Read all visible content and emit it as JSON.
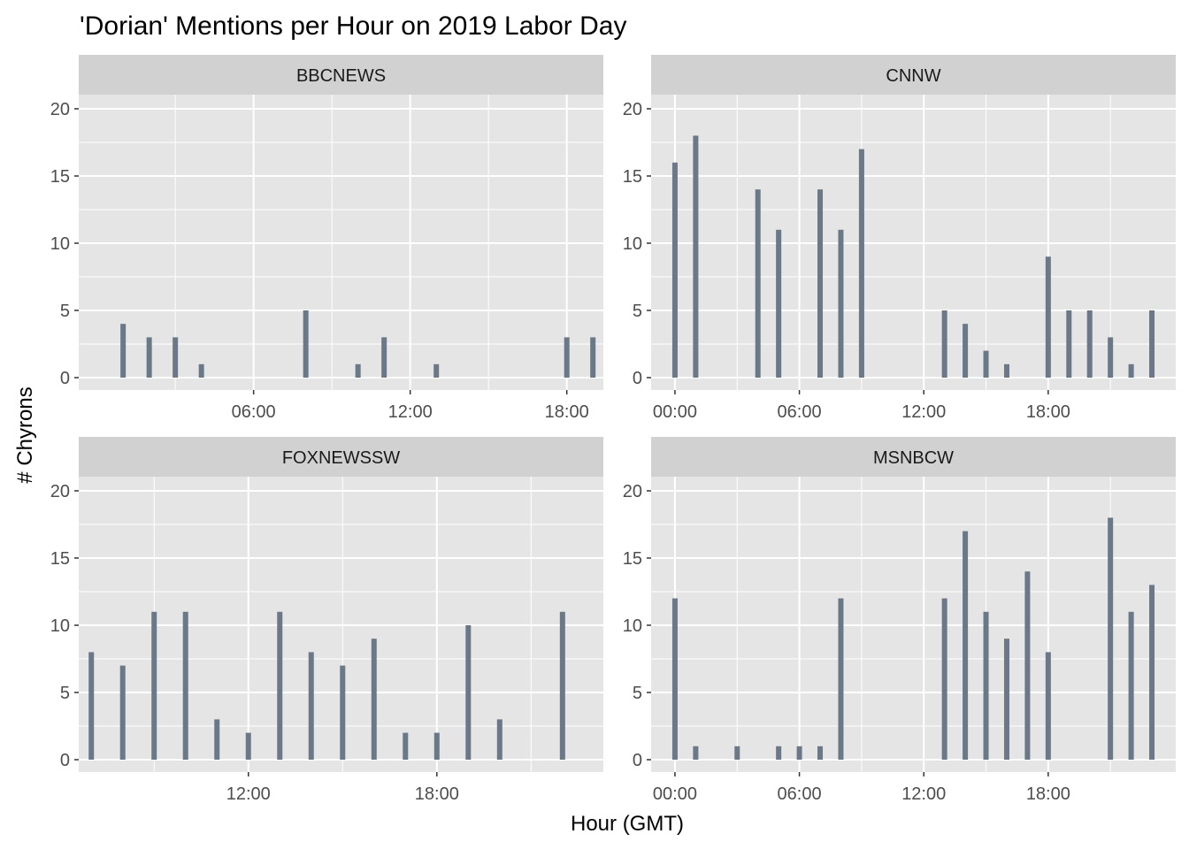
{
  "title": "'Dorian' Mentions per Hour on 2019 Labor Day",
  "xlabel": "Hour (GMT)",
  "ylabel": "# Chyrons",
  "colors": {
    "bar": "#6A7888",
    "panel": "#E5E5E5",
    "strip": "#D1D1D1",
    "grid": "#FFFFFF"
  },
  "chart_data": [
    {
      "type": "bar",
      "panel": "BBCNEWS",
      "x_unit": "hour of day (GMT)",
      "x_range": [
        -0.7,
        19.4
      ],
      "x_ticks": [
        6,
        12,
        18
      ],
      "x_tick_labels": [
        "06:00",
        "12:00",
        "18:00"
      ],
      "ylim": [
        0,
        20
      ],
      "y_ticks": [
        0,
        5,
        10,
        15,
        20
      ],
      "x": [
        1,
        2,
        3,
        4,
        8,
        10,
        11,
        13,
        18,
        19
      ],
      "values": [
        4,
        3,
        3,
        1,
        5,
        1,
        3,
        1,
        3,
        3
      ]
    },
    {
      "type": "bar",
      "panel": "CNNW",
      "x_unit": "hour of day (GMT)",
      "x_range": [
        -1.15,
        24.15
      ],
      "x_ticks": [
        0,
        6,
        12,
        18
      ],
      "x_tick_labels": [
        "00:00",
        "06:00",
        "12:00",
        "18:00"
      ],
      "ylim": [
        0,
        20
      ],
      "y_ticks": [
        0,
        5,
        10,
        15,
        20
      ],
      "x": [
        0,
        1,
        4,
        5,
        7,
        8,
        9,
        13,
        14,
        15,
        16,
        18,
        19,
        20,
        21,
        22,
        23
      ],
      "values": [
        16,
        18,
        14,
        11,
        14,
        11,
        17,
        5,
        4,
        2,
        1,
        9,
        5,
        5,
        3,
        1,
        5
      ]
    },
    {
      "type": "bar",
      "panel": "FOXNEWSSW",
      "x_unit": "hour of day (GMT)",
      "x_range": [
        6.6,
        23.3
      ],
      "x_ticks": [
        12,
        18
      ],
      "x_tick_labels": [
        "12:00",
        "18:00"
      ],
      "ylim": [
        0,
        20
      ],
      "y_ticks": [
        0,
        5,
        10,
        15,
        20
      ],
      "x": [
        7,
        8,
        9,
        10,
        11,
        12,
        13,
        14,
        15,
        16,
        17,
        18,
        19,
        20,
        22,
        23
      ],
      "values": [
        8,
        7,
        11,
        11,
        3,
        2,
        11,
        8,
        7,
        9,
        2,
        2,
        10,
        3,
        11,
        0
      ]
    },
    {
      "type": "bar",
      "panel": "MSNBCW",
      "x_unit": "hour of day (GMT)",
      "x_range": [
        -1.15,
        24.15
      ],
      "x_ticks": [
        0,
        6,
        12,
        18
      ],
      "x_tick_labels": [
        "00:00",
        "06:00",
        "12:00",
        "18:00"
      ],
      "ylim": [
        0,
        20
      ],
      "y_ticks": [
        0,
        5,
        10,
        15,
        20
      ],
      "x": [
        0,
        1,
        3,
        5,
        6,
        7,
        8,
        13,
        14,
        15,
        16,
        17,
        18,
        21,
        22,
        23
      ],
      "values": [
        12,
        1,
        1,
        1,
        1,
        1,
        12,
        12,
        17,
        11,
        9,
        14,
        8,
        18,
        11,
        13
      ]
    }
  ]
}
